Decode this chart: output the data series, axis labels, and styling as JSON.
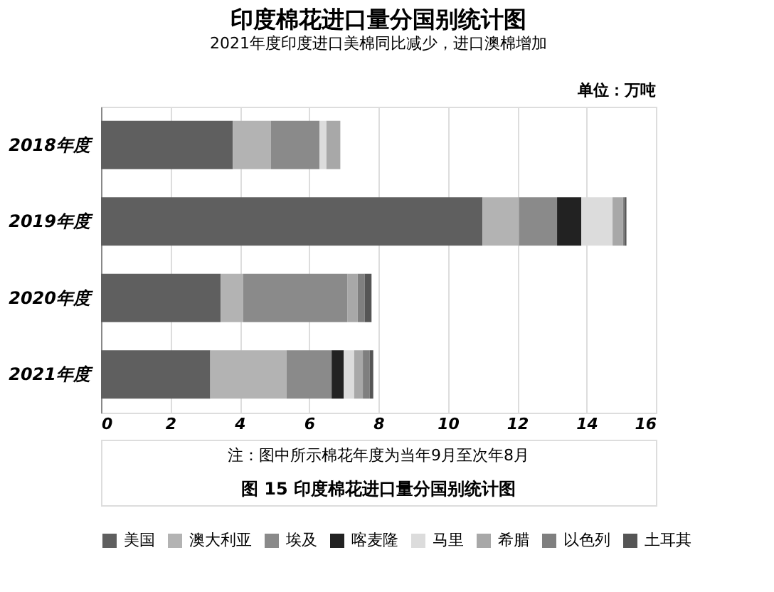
{
  "chart_data": {
    "type": "bar",
    "orientation": "horizontal",
    "stacked": true,
    "title": "印度棉花进口量分国别统计图",
    "subtitle": "2021年度印度进口美棉同比减少，进口澳棉增加",
    "categories": [
      "2018年度",
      "2019年度",
      "2020年度",
      "2021年度"
    ],
    "series": [
      {
        "name": "美国",
        "color": "#5f5f5f",
        "values": [
          3.8,
          11.0,
          3.45,
          3.15
        ]
      },
      {
        "name": "澳大利亚",
        "color": "#b3b3b3",
        "values": [
          1.1,
          1.05,
          0.65,
          2.2
        ]
      },
      {
        "name": "埃及",
        "color": "#8a8a8a",
        "values": [
          1.4,
          1.1,
          3.0,
          1.3
        ]
      },
      {
        "name": "喀麦隆",
        "color": "#222222",
        "values": [
          0,
          0.7,
          0,
          0.35
        ]
      },
      {
        "name": "马里",
        "color": "#dcdcdc",
        "values": [
          0.2,
          0.9,
          0,
          0.3
        ]
      },
      {
        "name": "希腊",
        "color": "#a8a8a8",
        "values": [
          0.4,
          0.3,
          0.3,
          0.25
        ]
      },
      {
        "name": "以色列",
        "color": "#7f7f7f",
        "values": [
          0,
          0.05,
          0.2,
          0.2
        ]
      },
      {
        "name": "土耳其",
        "color": "#555555",
        "values": [
          0,
          0.05,
          0.2,
          0.1
        ]
      }
    ],
    "xlim": [
      0,
      16
    ],
    "xticks": [
      0,
      2,
      4,
      6,
      8,
      10,
      12,
      14,
      16
    ],
    "grid": "x",
    "legend": "bottom",
    "annotations": [
      "单位：万吨",
      "注：图中所示棉花年度为当年9月至次年8月",
      "图 15    印度棉花进口量分国别统计图"
    ]
  }
}
